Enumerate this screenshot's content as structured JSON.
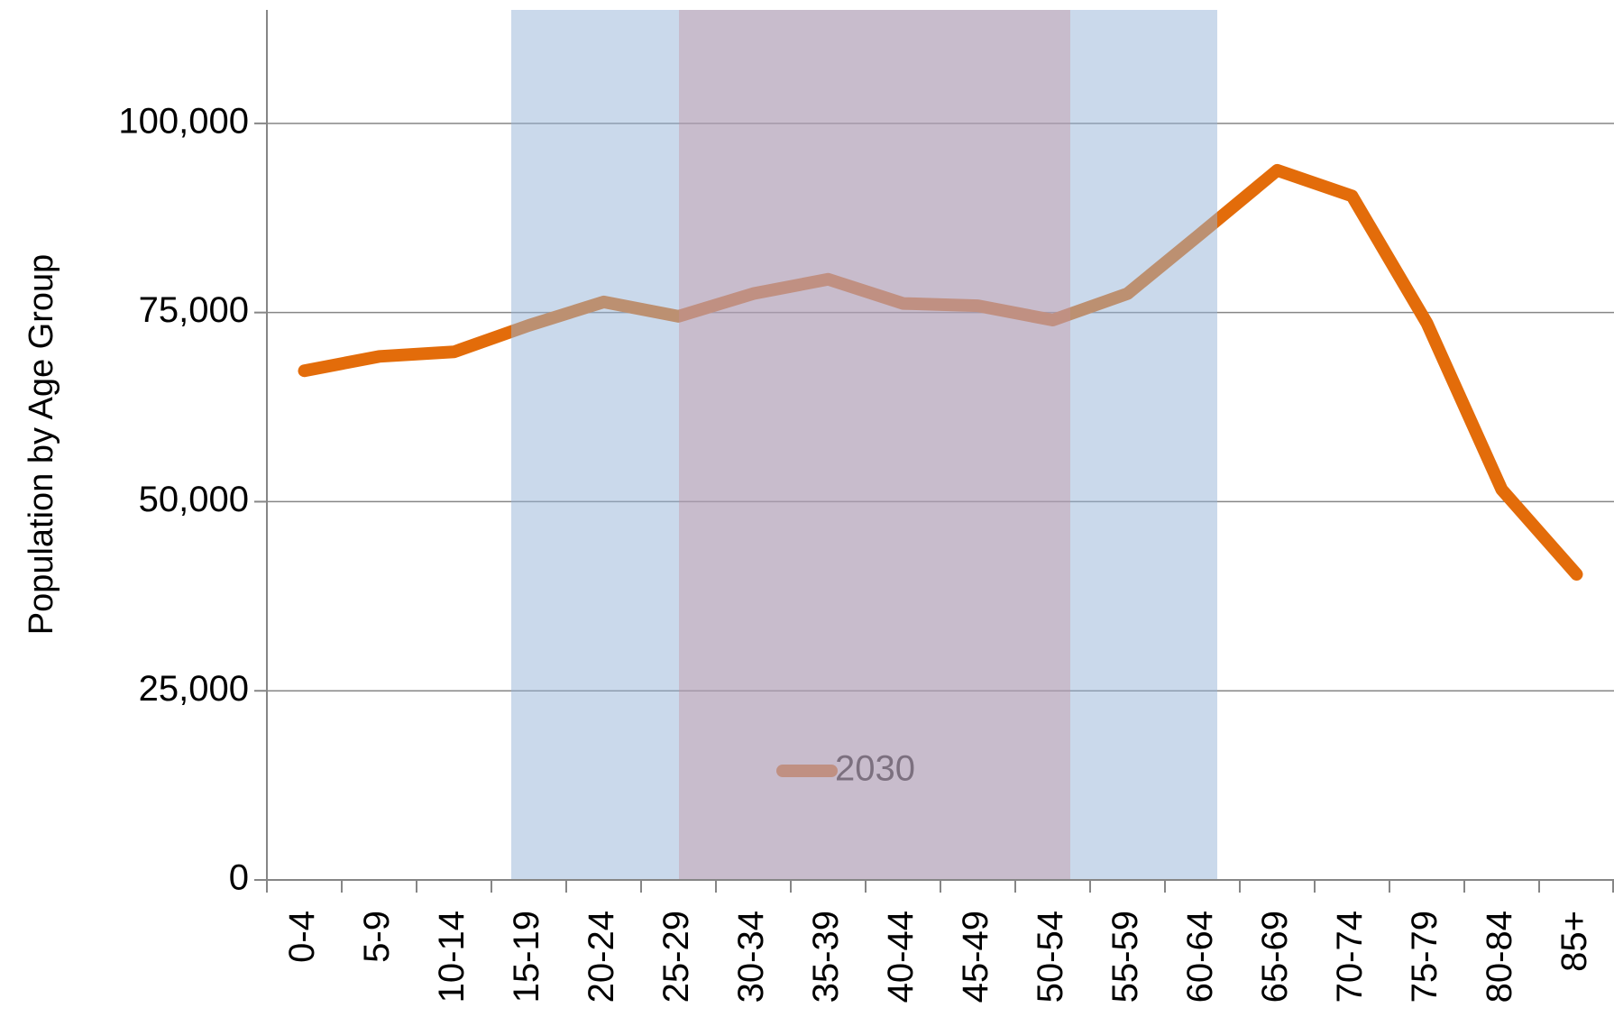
{
  "chart_data": {
    "type": "line",
    "y_label": "Population by Age Group",
    "categories": [
      "0-4",
      "5-9",
      "10-14",
      "15-19",
      "20-24",
      "25-29",
      "30-34",
      "35-39",
      "40-44",
      "45-49",
      "50-54",
      "55-59",
      "60-64",
      "65-69",
      "70-74",
      "75-79",
      "80-84",
      "85+"
    ],
    "series": [
      {
        "name": "2030",
        "color": "#e36c0a",
        "values": [
          67300,
          69200,
          69800,
          73300,
          76400,
          74500,
          77500,
          79400,
          76200,
          75900,
          74000,
          77500,
          85600,
          93800,
          90400,
          73600,
          51600,
          40400
        ]
      }
    ],
    "ylim": [
      0,
      115000
    ],
    "yticks": [
      0,
      {
        "value": 25000,
        "label": "25,000"
      },
      {
        "value": 50000,
        "label": "50,000"
      },
      {
        "value": 75000,
        "label": "75,000"
      },
      {
        "value": 100000,
        "label": "100,000"
      }
    ],
    "grid": true
  }
}
